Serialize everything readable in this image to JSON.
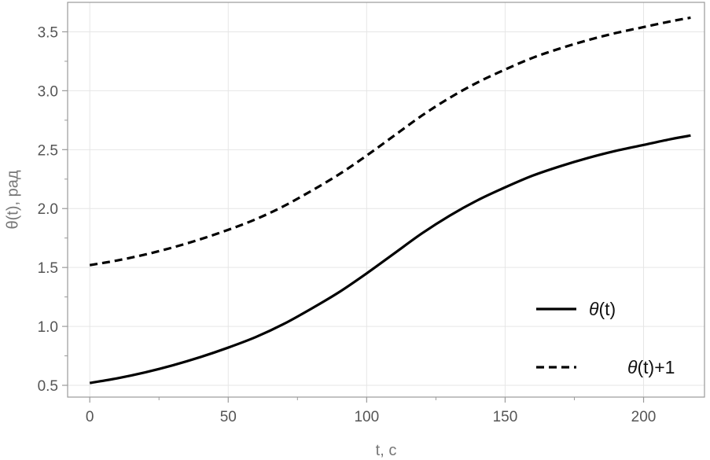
{
  "chart_data": {
    "type": "line",
    "title": "",
    "xlabel": "t, с",
    "ylabel": "θ(t), рад",
    "xlim": [
      -8,
      222
    ],
    "ylim": [
      0.4,
      3.75
    ],
    "x_ticks": [
      0,
      50,
      100,
      150,
      200
    ],
    "y_ticks": [
      0.5,
      1.0,
      1.5,
      2.0,
      2.5,
      3.0,
      3.5
    ],
    "grid": true,
    "legend_position": "bottom-right",
    "series": [
      {
        "name": "θ(t)",
        "name_symbol": "θ",
        "name_suffix": "(t)",
        "style": "solid",
        "color": "#000000",
        "x": [
          0,
          10,
          20,
          30,
          40,
          50,
          60,
          70,
          80,
          90,
          100,
          110,
          120,
          130,
          140,
          150,
          160,
          170,
          180,
          190,
          200,
          210,
          217
        ],
        "y": [
          0.52,
          0.56,
          0.61,
          0.67,
          0.74,
          0.82,
          0.91,
          1.02,
          1.15,
          1.29,
          1.45,
          1.62,
          1.79,
          1.94,
          2.07,
          2.18,
          2.28,
          2.36,
          2.43,
          2.49,
          2.54,
          2.59,
          2.62
        ]
      },
      {
        "name": "θ(t)+1",
        "name_symbol": "θ",
        "name_suffix": "(t)+1",
        "style": "dashed",
        "color": "#000000",
        "x": [
          0,
          10,
          20,
          30,
          40,
          50,
          60,
          70,
          80,
          90,
          100,
          110,
          120,
          130,
          140,
          150,
          160,
          170,
          180,
          190,
          200,
          210,
          217
        ],
        "y": [
          1.52,
          1.56,
          1.61,
          1.67,
          1.74,
          1.82,
          1.91,
          2.02,
          2.15,
          2.29,
          2.45,
          2.62,
          2.79,
          2.94,
          3.07,
          3.18,
          3.28,
          3.36,
          3.43,
          3.49,
          3.54,
          3.59,
          3.62
        ]
      }
    ]
  }
}
